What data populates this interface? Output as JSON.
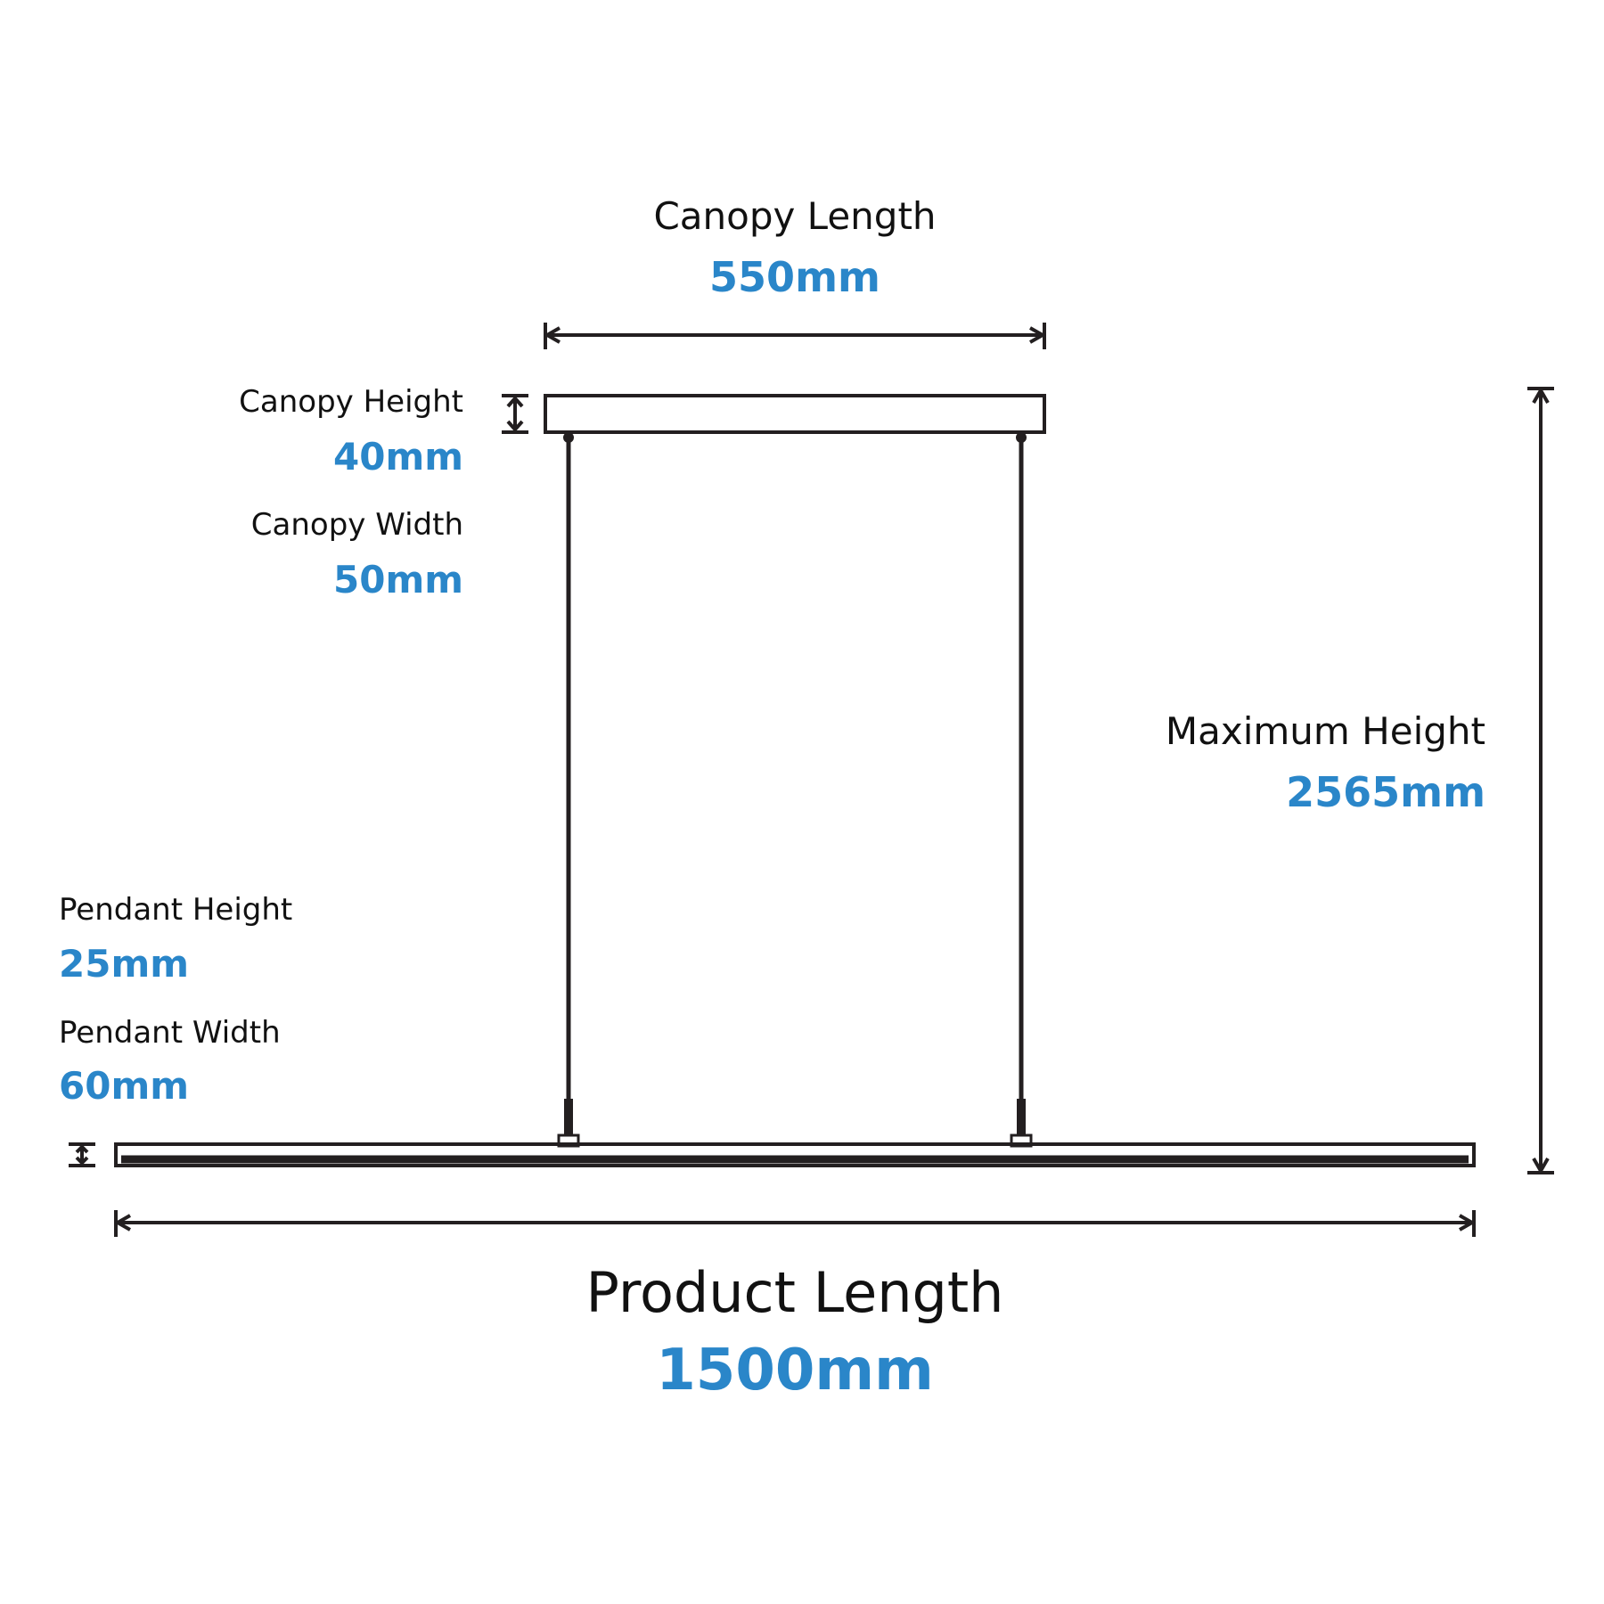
{
  "colors": {
    "line": "#231f20",
    "value": "#2a86c9",
    "label": "#111111"
  },
  "canopy_length": {
    "label": "Canopy Length",
    "value": "550mm"
  },
  "canopy_height": {
    "label": "Canopy Height",
    "value": "40mm"
  },
  "canopy_width": {
    "label": "Canopy Width",
    "value": "50mm"
  },
  "maximum_height": {
    "label": "Maximum Height",
    "value": "2565mm"
  },
  "pendant_height": {
    "label": "Pendant Height",
    "value": "25mm"
  },
  "pendant_width": {
    "label": "Pendant Width",
    "value": "60mm"
  },
  "product_length": {
    "label": "Product Length",
    "value": "1500mm"
  }
}
